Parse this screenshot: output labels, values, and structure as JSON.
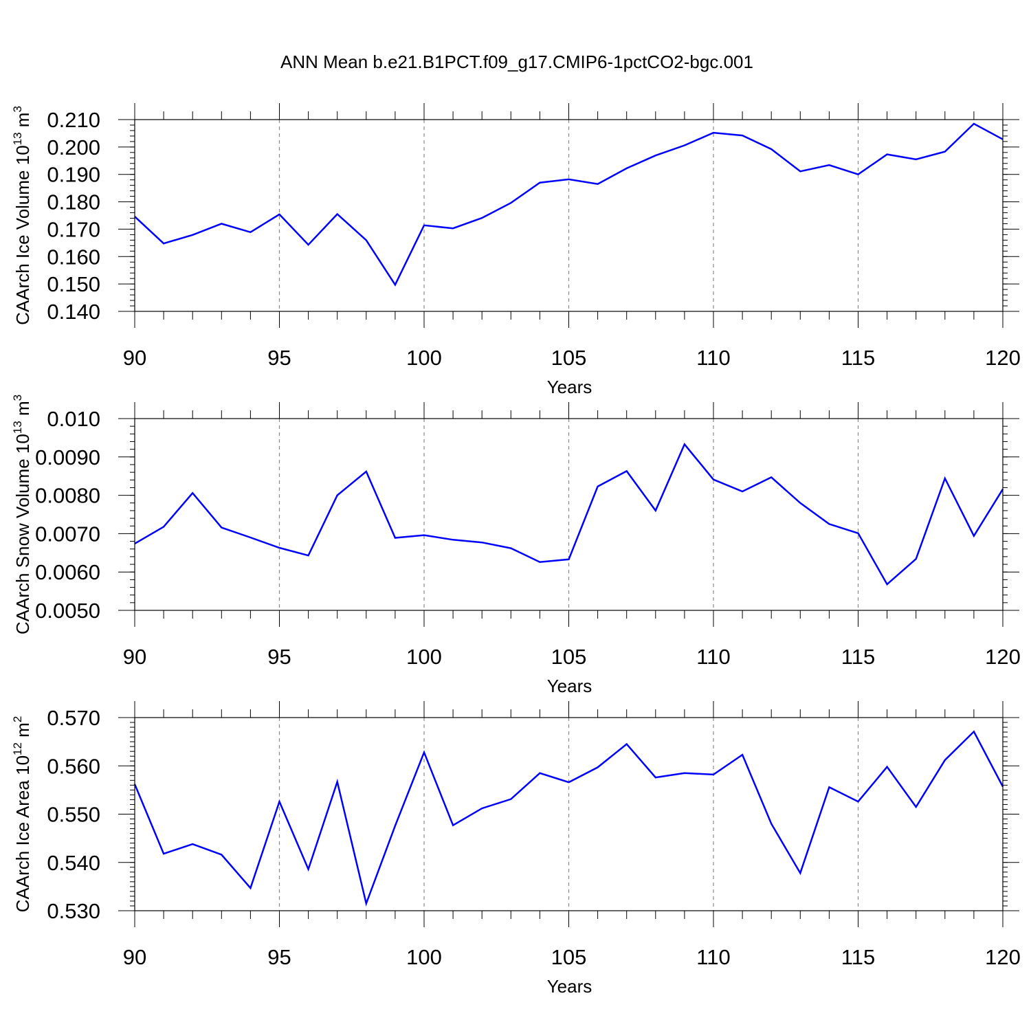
{
  "title": "ANN Mean b.e21.B1PCT.f09_g17.CMIP6-1pctCO2-bgc.001",
  "colors": {
    "line": "#0000ff",
    "frame": "#000000",
    "grid": "#888888"
  },
  "chart_data": [
    {
      "type": "line",
      "name": "ice-volume",
      "ylabel": "CAArch Ice Volume 10",
      "ylabel_exp": "13",
      "ylabel_unit": " m",
      "ylabel_unit_exp": "3",
      "xlabel": "Years",
      "xlim": [
        90,
        120
      ],
      "ylim": [
        0.14,
        0.21
      ],
      "x_ticks": [
        90,
        95,
        100,
        105,
        110,
        115,
        120
      ],
      "x_tick_labels": [
        "90",
        "95",
        "100",
        "105",
        "110",
        "115",
        "120"
      ],
      "y_ticks": [
        0.14,
        0.15,
        0.16,
        0.17,
        0.18,
        0.19,
        0.2,
        0.21
      ],
      "y_tick_labels": [
        "0.140",
        "0.150",
        "0.160",
        "0.170",
        "0.180",
        "0.190",
        "0.200",
        "0.210"
      ],
      "y_minor_step": 0.002,
      "grid": "dashed vertical at major x ticks",
      "x": [
        90,
        91,
        92,
        93,
        94,
        95,
        96,
        97,
        98,
        99,
        100,
        101,
        102,
        103,
        104,
        105,
        106,
        107,
        108,
        109,
        110,
        111,
        112,
        113,
        114,
        115,
        116,
        117,
        118,
        119,
        120
      ],
      "values": [
        0.1746,
        0.1648,
        0.1679,
        0.172,
        0.1689,
        0.1754,
        0.1643,
        0.1755,
        0.166,
        0.1497,
        0.1714,
        0.1703,
        0.1741,
        0.1796,
        0.187,
        0.1882,
        0.1865,
        0.1922,
        0.1969,
        0.2006,
        0.2052,
        0.2042,
        0.1992,
        0.1911,
        0.1934,
        0.19,
        0.1973,
        0.1955,
        0.1983,
        0.2085,
        0.2028
      ]
    },
    {
      "type": "line",
      "name": "snow-volume",
      "ylabel": "CAArch Snow Volume 10",
      "ylabel_exp": "13",
      "ylabel_unit": " m",
      "ylabel_unit_exp": "3",
      "xlabel": "Years",
      "xlim": [
        90,
        120
      ],
      "ylim": [
        0.005,
        0.01
      ],
      "x_ticks": [
        90,
        95,
        100,
        105,
        110,
        115,
        120
      ],
      "x_tick_labels": [
        "90",
        "95",
        "100",
        "105",
        "110",
        "115",
        "120"
      ],
      "y_ticks": [
        0.005,
        0.006,
        0.007,
        0.008,
        0.009,
        0.01
      ],
      "y_tick_labels": [
        "0.0050",
        "0.0060",
        "0.0070",
        "0.0080",
        "0.0090",
        "0.010"
      ],
      "y_minor_step": 0.0002,
      "grid": "dashed vertical at major x ticks",
      "x": [
        90,
        91,
        92,
        93,
        94,
        95,
        96,
        97,
        98,
        99,
        100,
        101,
        102,
        103,
        104,
        105,
        106,
        107,
        108,
        109,
        110,
        111,
        112,
        113,
        114,
        115,
        116,
        117,
        118,
        119,
        120
      ],
      "values": [
        0.00674,
        0.00718,
        0.00806,
        0.00716,
        0.0069,
        0.00663,
        0.00643,
        0.008,
        0.00862,
        0.00689,
        0.00696,
        0.00684,
        0.00677,
        0.00662,
        0.00626,
        0.00633,
        0.00823,
        0.00863,
        0.0076,
        0.00933,
        0.00841,
        0.0081,
        0.00847,
        0.0078,
        0.00725,
        0.00701,
        0.00568,
        0.00634,
        0.00844,
        0.00694,
        0.00816
      ]
    },
    {
      "type": "line",
      "name": "ice-area",
      "ylabel": "CAArch Ice Area 10",
      "ylabel_exp": "12",
      "ylabel_unit": " m",
      "ylabel_unit_exp": "2",
      "xlabel": "Years",
      "xlim": [
        90,
        120
      ],
      "ylim": [
        0.53,
        0.57
      ],
      "x_ticks": [
        90,
        95,
        100,
        105,
        110,
        115,
        120
      ],
      "x_tick_labels": [
        "90",
        "95",
        "100",
        "105",
        "110",
        "115",
        "120"
      ],
      "y_ticks": [
        0.53,
        0.54,
        0.55,
        0.56,
        0.57
      ],
      "y_tick_labels": [
        "0.530",
        "0.540",
        "0.550",
        "0.560",
        "0.570"
      ],
      "y_minor_step": 0.001,
      "grid": "dashed vertical at major x ticks",
      "x": [
        90,
        91,
        92,
        93,
        94,
        95,
        96,
        97,
        98,
        99,
        100,
        101,
        102,
        103,
        104,
        105,
        106,
        107,
        108,
        109,
        110,
        111,
        112,
        113,
        114,
        115,
        116,
        117,
        118,
        119,
        120
      ],
      "values": [
        0.5562,
        0.5418,
        0.5438,
        0.5416,
        0.5347,
        0.5526,
        0.5386,
        0.5567,
        0.5315,
        0.5476,
        0.5628,
        0.5477,
        0.5512,
        0.5531,
        0.5585,
        0.5566,
        0.5597,
        0.5645,
        0.5576,
        0.5585,
        0.5582,
        0.5623,
        0.548,
        0.5378,
        0.5556,
        0.5526,
        0.5598,
        0.5515,
        0.5612,
        0.5671,
        0.5557
      ]
    }
  ]
}
